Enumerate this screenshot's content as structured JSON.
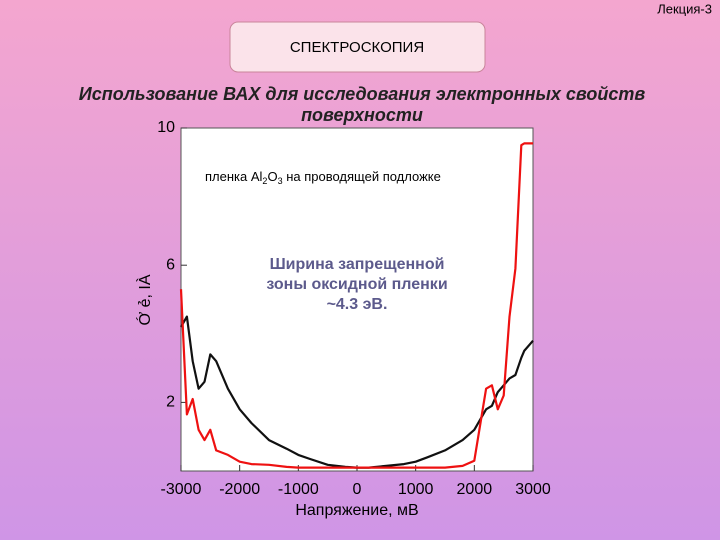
{
  "slide": {
    "lecture": "Лекция-3",
    "section": "СПЕКТРОСКОПИЯ",
    "title_lines": [
      "Использование ВАХ для исследования электронных свойств",
      "поверхности"
    ]
  },
  "chart_data": {
    "type": "line",
    "ylabel": "Ớ ẻ, ІÀ",
    "xlabel": "Напряжение, мВ",
    "annotation_1": [
      "пленка Al",
      "2",
      "O",
      "3",
      " на проводящей подложке"
    ],
    "annotation_2": [
      "Ширина запрещенной",
      "зоны оксидной пленки",
      "~4.3 эВ."
    ],
    "xlim": [
      -3000,
      3000
    ],
    "xticks": [
      -3000,
      -2000,
      -1000,
      0,
      1000,
      2000,
      3000
    ],
    "ylim": [
      0,
      10
    ],
    "yticks": [
      2,
      6,
      10
    ],
    "x": [
      -3000,
      -2900,
      -2800,
      -2700,
      -2600,
      -2500,
      -2400,
      -2200,
      -2000,
      -1800,
      -1500,
      -1200,
      -1000,
      -800,
      -500,
      -200,
      0,
      200,
      500,
      800,
      1000,
      1200,
      1500,
      1800,
      2000,
      2200,
      2300,
      2400,
      2500,
      2600,
      2700,
      2800,
      2850,
      3000
    ],
    "series": [
      {
        "name": "black",
        "color": "#111111",
        "values": [
          4.2,
          4.5,
          3.2,
          2.4,
          2.6,
          3.4,
          3.2,
          2.4,
          1.8,
          1.4,
          0.9,
          0.65,
          0.47,
          0.35,
          0.18,
          0.12,
          0.1,
          0.1,
          0.15,
          0.2,
          0.27,
          0.4,
          0.6,
          0.9,
          1.2,
          1.8,
          1.9,
          2.3,
          2.5,
          2.7,
          2.8,
          3.3,
          3.5,
          3.8
        ]
      },
      {
        "name": "red",
        "color": "#ee1111",
        "values": [
          5.3,
          1.65,
          2.1,
          1.2,
          0.9,
          1.2,
          0.6,
          0.47,
          0.27,
          0.2,
          0.18,
          0.12,
          0.1,
          0.1,
          0.1,
          0.1,
          0.1,
          0.1,
          0.1,
          0.1,
          0.1,
          0.1,
          0.1,
          0.15,
          0.3,
          2.4,
          2.5,
          1.8,
          2.2,
          4.5,
          5.9,
          9.5,
          9.55,
          9.55
        ]
      }
    ]
  }
}
